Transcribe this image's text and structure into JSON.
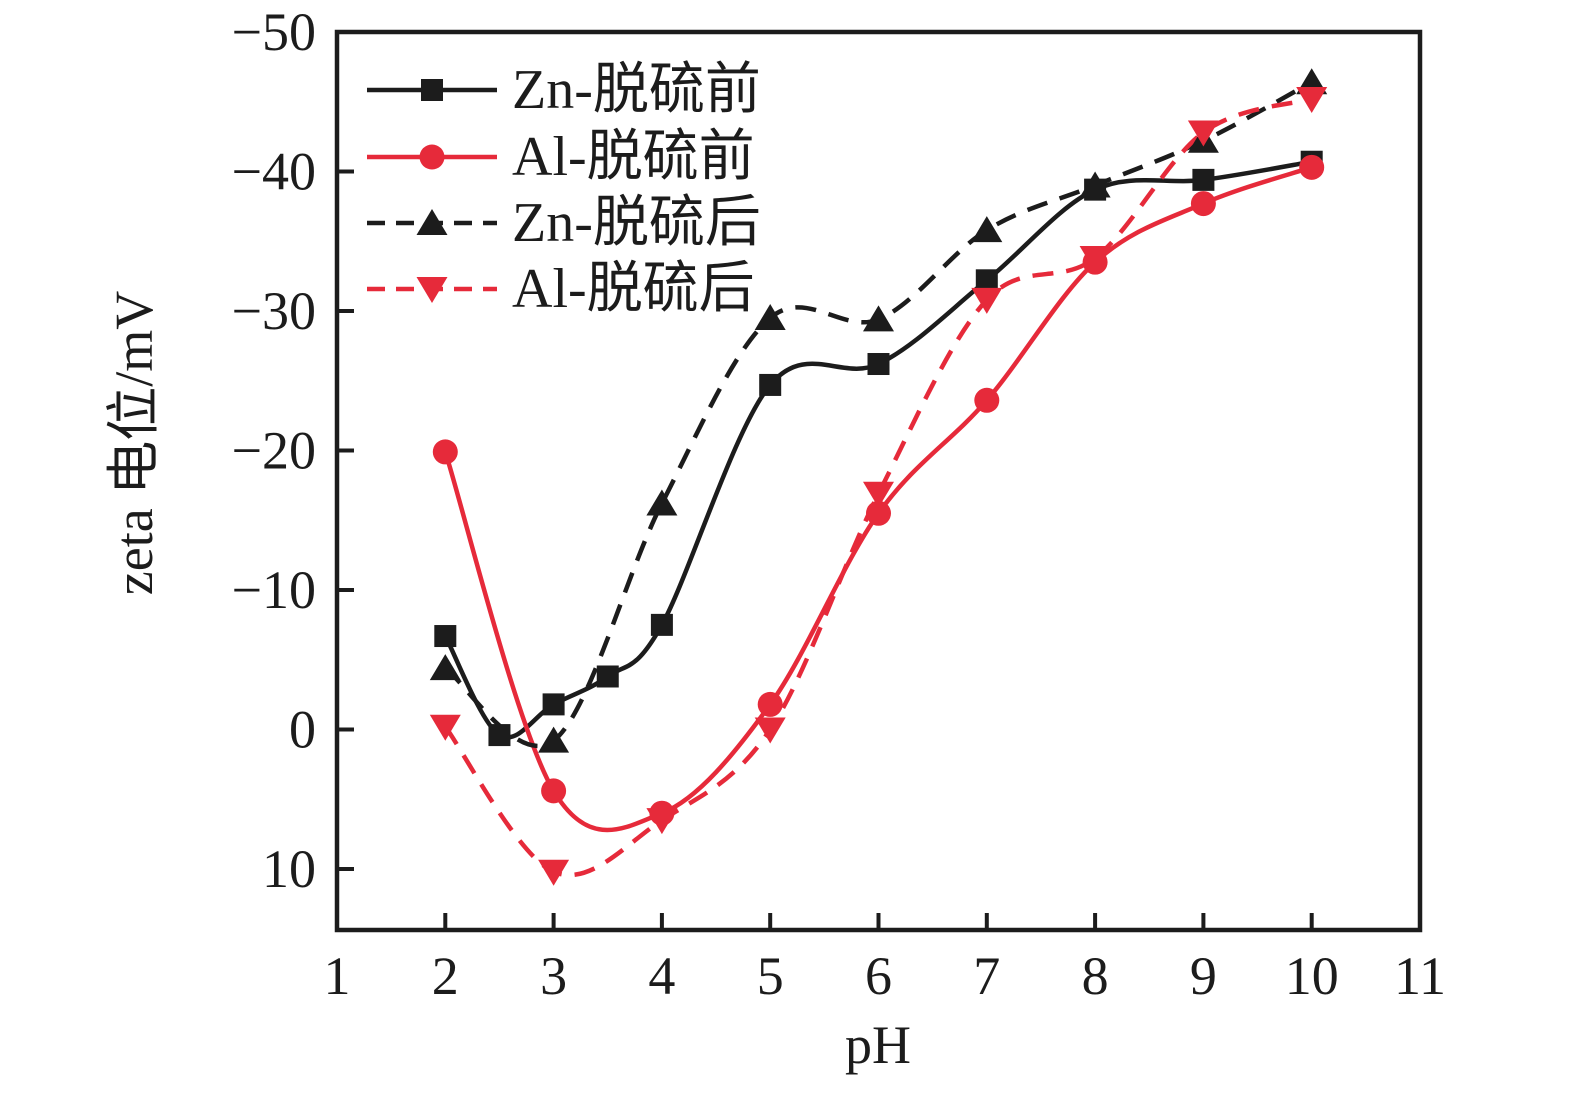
{
  "figure": {
    "background": "#ffffff",
    "text_color": "#1c1c1c",
    "accent_red": "#e62a3a",
    "accent_black": "#1c1c1c"
  },
  "chart_data": {
    "type": "line",
    "title": "",
    "xlabel": "pH",
    "ylabel": "zeta 电位/mV",
    "x_range": [
      1,
      11
    ],
    "y_range": [
      -50,
      10
    ],
    "y_axis_inverted": true,
    "grid": false,
    "legend_position": "top-left",
    "x_ticks": [
      1,
      2,
      3,
      4,
      5,
      6,
      7,
      8,
      9,
      10,
      11
    ],
    "x_tick_labels": [
      "1",
      "2",
      "3",
      "4",
      "5",
      "6",
      "7",
      "8",
      "9",
      "10",
      "11"
    ],
    "y_ticks": [
      -50,
      -40,
      -30,
      -20,
      -10,
      0,
      10
    ],
    "y_tick_labels": [
      "−50",
      "−40",
      "−30",
      "−20",
      "−10",
      "0",
      "10"
    ],
    "series": [
      {
        "key": "zn-before",
        "name": "Zn-脱硫前",
        "color": "#1c1c1c",
        "line_style": "solid",
        "marker": "square",
        "x": [
          2,
          2.5,
          3,
          3.5,
          4,
          5,
          6,
          7,
          8,
          9,
          10
        ],
        "y": [
          -6.7,
          0.4,
          -1.8,
          -3.8,
          -7.5,
          -24.7,
          -26.2,
          -32.2,
          -38.7,
          -39.4,
          -40.7
        ]
      },
      {
        "key": "al-before",
        "name": "Al-脱硫前",
        "color": "#e62a3a",
        "line_style": "solid",
        "marker": "circle",
        "x": [
          2,
          3,
          4,
          5,
          6,
          7,
          8,
          9,
          10
        ],
        "y": [
          -19.9,
          4.4,
          6.0,
          -1.8,
          -15.5,
          -23.6,
          -33.5,
          -37.7,
          -40.3
        ]
      },
      {
        "key": "zn-after",
        "name": "Zn-脱硫后",
        "color": "#1c1c1c",
        "line_style": "dashed",
        "marker": "triangle-up",
        "x": [
          2,
          3,
          4,
          5,
          6,
          7,
          8,
          9,
          10
        ],
        "y": [
          -4.4,
          0.8,
          -16.2,
          -29.5,
          -29.4,
          -35.8,
          -39.0,
          -42.2,
          -46.4
        ]
      },
      {
        "key": "al-after",
        "name": "Al-脱硫后",
        "color": "#e62a3a",
        "line_style": "dashed",
        "marker": "triangle-down",
        "x": [
          2,
          3,
          4,
          5,
          6,
          7,
          8,
          9,
          10
        ],
        "y": [
          -0.2,
          10.2,
          6.5,
          0.0,
          -16.9,
          -30.8,
          -33.8,
          -42.8,
          -45.2
        ]
      }
    ]
  }
}
